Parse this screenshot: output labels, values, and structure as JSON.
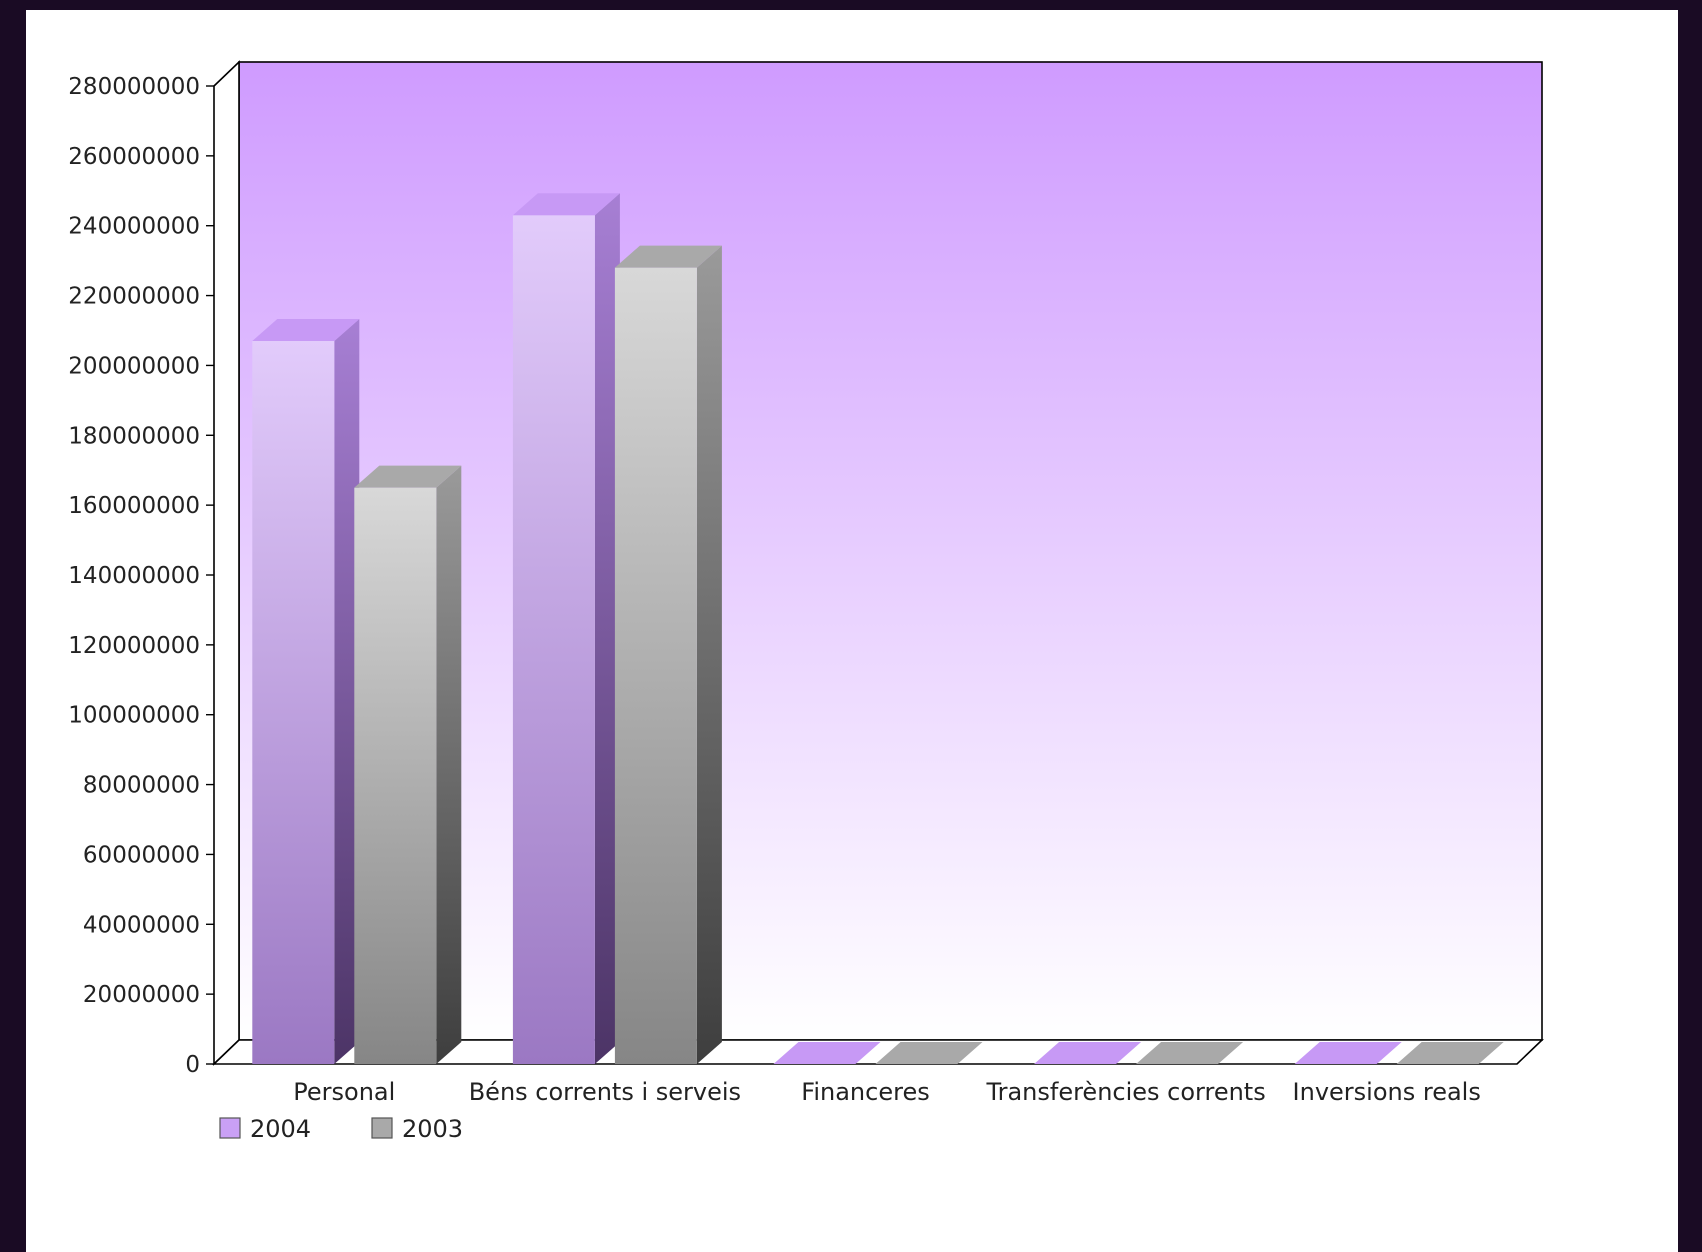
{
  "chart_data": {
    "type": "bar",
    "categories": [
      "Personal",
      "Béns corrents i serveis",
      "Financeres",
      "Transferències corrents",
      "Inversions reals"
    ],
    "series": [
      {
        "name": "2004",
        "values": [
          207000000,
          243000000,
          0,
          0,
          0
        ],
        "color": "#c9a0f5"
      },
      {
        "name": "2003",
        "values": [
          165000000,
          228000000,
          0,
          0,
          0
        ],
        "color": "#a9a9a9"
      }
    ],
    "ylim": [
      0,
      280000000
    ],
    "yticks": [
      0,
      20000000,
      40000000,
      60000000,
      80000000,
      100000000,
      120000000,
      140000000,
      160000000,
      180000000,
      200000000,
      220000000,
      240000000,
      260000000,
      280000000
    ],
    "xlabel": "",
    "ylabel": "",
    "title": "",
    "grid": false,
    "legend": "bottom-left",
    "style": "3d-bar",
    "background_gradient": [
      "#cf9bff",
      "#ffffff"
    ]
  }
}
